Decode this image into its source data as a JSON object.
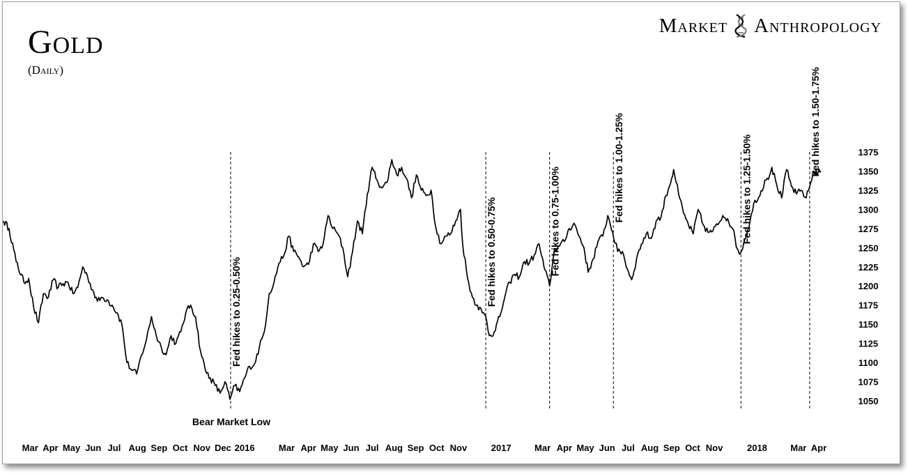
{
  "header": {
    "title": "Gold",
    "subtitle": "(Daily)"
  },
  "brand": {
    "left": "Market",
    "right": "Anthropology",
    "logo_icon": "dna-helix-icon"
  },
  "chart_data": {
    "type": "line",
    "title": "Gold",
    "subtitle": "(Daily)",
    "xlabel": "",
    "ylabel": "",
    "ylim": [
      1040,
      1385
    ],
    "y_ticks": [
      1050,
      1075,
      1100,
      1125,
      1150,
      1175,
      1200,
      1225,
      1250,
      1275,
      1300,
      1325,
      1350,
      1375
    ],
    "grid": false,
    "legend": "none",
    "x_range": [
      "2015-01-26",
      "2018-04-06"
    ],
    "x_ticks": [
      {
        "date": "2015-03-05",
        "label": "Mar"
      },
      {
        "date": "2015-04-03",
        "label": "Apr"
      },
      {
        "date": "2015-05-03",
        "label": "May"
      },
      {
        "date": "2015-06-03",
        "label": "Jun"
      },
      {
        "date": "2015-07-03",
        "label": "Jul"
      },
      {
        "date": "2015-08-05",
        "label": "Aug"
      },
      {
        "date": "2015-09-05",
        "label": "Sep"
      },
      {
        "date": "2015-10-05",
        "label": "Oct"
      },
      {
        "date": "2015-11-05",
        "label": "Nov"
      },
      {
        "date": "2015-12-05",
        "label": "Dec"
      },
      {
        "date": "2016-01-05",
        "label": "2016"
      },
      {
        "date": "2016-03-05",
        "label": "Mar"
      },
      {
        "date": "2016-04-05",
        "label": "Apr"
      },
      {
        "date": "2016-05-05",
        "label": "May"
      },
      {
        "date": "2016-06-05",
        "label": "Jun"
      },
      {
        "date": "2016-07-05",
        "label": "Jul"
      },
      {
        "date": "2016-08-05",
        "label": "Aug"
      },
      {
        "date": "2016-09-05",
        "label": "Sep"
      },
      {
        "date": "2016-10-05",
        "label": "Oct"
      },
      {
        "date": "2016-11-05",
        "label": "Nov"
      },
      {
        "date": "2017-01-05",
        "label": "2017"
      },
      {
        "date": "2017-03-05",
        "label": "Mar"
      },
      {
        "date": "2017-04-05",
        "label": "Apr"
      },
      {
        "date": "2017-05-05",
        "label": "May"
      },
      {
        "date": "2017-06-05",
        "label": "Jun"
      },
      {
        "date": "2017-07-05",
        "label": "Jul"
      },
      {
        "date": "2017-08-05",
        "label": "Aug"
      },
      {
        "date": "2017-09-05",
        "label": "Sep"
      },
      {
        "date": "2017-10-05",
        "label": "Oct"
      },
      {
        "date": "2017-11-05",
        "label": "Nov"
      },
      {
        "date": "2018-01-05",
        "label": "2018"
      },
      {
        "date": "2018-03-05",
        "label": "Mar"
      },
      {
        "date": "2018-04-03",
        "label": "Apr"
      }
    ],
    "series": [
      {
        "values": [
          [
            "2015-01-26",
            1285
          ],
          [
            "2015-02-03",
            1275
          ],
          [
            "2015-02-13",
            1232
          ],
          [
            "2015-02-24",
            1205
          ],
          [
            "2015-03-03",
            1210
          ],
          [
            "2015-03-10",
            1172
          ],
          [
            "2015-03-17",
            1152
          ],
          [
            "2015-03-24",
            1190
          ],
          [
            "2015-03-31",
            1185
          ],
          [
            "2015-04-07",
            1208
          ],
          [
            "2015-04-14",
            1198
          ],
          [
            "2015-04-21",
            1203
          ],
          [
            "2015-04-28",
            1205
          ],
          [
            "2015-05-05",
            1190
          ],
          [
            "2015-05-12",
            1198
          ],
          [
            "2015-05-19",
            1225
          ],
          [
            "2015-05-26",
            1212
          ],
          [
            "2015-06-02",
            1195
          ],
          [
            "2015-06-09",
            1180
          ],
          [
            "2015-06-16",
            1185
          ],
          [
            "2015-06-23",
            1182
          ],
          [
            "2015-06-30",
            1175
          ],
          [
            "2015-07-07",
            1165
          ],
          [
            "2015-07-14",
            1150
          ],
          [
            "2015-07-21",
            1100
          ],
          [
            "2015-07-28",
            1090
          ],
          [
            "2015-08-04",
            1085
          ],
          [
            "2015-08-11",
            1110
          ],
          [
            "2015-08-18",
            1130
          ],
          [
            "2015-08-25",
            1160
          ],
          [
            "2015-09-01",
            1135
          ],
          [
            "2015-09-08",
            1120
          ],
          [
            "2015-09-15",
            1110
          ],
          [
            "2015-09-22",
            1135
          ],
          [
            "2015-09-29",
            1125
          ],
          [
            "2015-10-06",
            1140
          ],
          [
            "2015-10-13",
            1165
          ],
          [
            "2015-10-20",
            1175
          ],
          [
            "2015-10-27",
            1160
          ],
          [
            "2015-11-03",
            1115
          ],
          [
            "2015-11-10",
            1090
          ],
          [
            "2015-11-17",
            1080
          ],
          [
            "2015-11-24",
            1070
          ],
          [
            "2015-12-01",
            1060
          ],
          [
            "2015-12-08",
            1075
          ],
          [
            "2015-12-15",
            1052
          ],
          [
            "2015-12-22",
            1070
          ],
          [
            "2015-12-29",
            1062
          ],
          [
            "2016-01-05",
            1080
          ],
          [
            "2016-01-12",
            1095
          ],
          [
            "2016-01-19",
            1098
          ],
          [
            "2016-01-26",
            1120
          ],
          [
            "2016-02-02",
            1140
          ],
          [
            "2016-02-09",
            1190
          ],
          [
            "2016-02-16",
            1205
          ],
          [
            "2016-02-23",
            1230
          ],
          [
            "2016-03-01",
            1240
          ],
          [
            "2016-03-08",
            1265
          ],
          [
            "2016-03-15",
            1245
          ],
          [
            "2016-03-22",
            1238
          ],
          [
            "2016-03-29",
            1225
          ],
          [
            "2016-04-05",
            1228
          ],
          [
            "2016-04-12",
            1255
          ],
          [
            "2016-04-19",
            1245
          ],
          [
            "2016-04-26",
            1255
          ],
          [
            "2016-05-03",
            1292
          ],
          [
            "2016-05-10",
            1275
          ],
          [
            "2016-05-17",
            1268
          ],
          [
            "2016-05-24",
            1250
          ],
          [
            "2016-05-31",
            1212
          ],
          [
            "2016-06-07",
            1245
          ],
          [
            "2016-06-14",
            1285
          ],
          [
            "2016-06-21",
            1268
          ],
          [
            "2016-06-28",
            1320
          ],
          [
            "2016-07-05",
            1355
          ],
          [
            "2016-07-12",
            1338
          ],
          [
            "2016-07-19",
            1328
          ],
          [
            "2016-07-26",
            1335
          ],
          [
            "2016-08-02",
            1365
          ],
          [
            "2016-08-09",
            1345
          ],
          [
            "2016-08-16",
            1355
          ],
          [
            "2016-08-23",
            1340
          ],
          [
            "2016-08-30",
            1315
          ],
          [
            "2016-09-06",
            1345
          ],
          [
            "2016-09-13",
            1325
          ],
          [
            "2016-09-20",
            1318
          ],
          [
            "2016-09-27",
            1325
          ],
          [
            "2016-10-04",
            1275
          ],
          [
            "2016-10-11",
            1255
          ],
          [
            "2016-10-18",
            1265
          ],
          [
            "2016-10-25",
            1268
          ],
          [
            "2016-11-01",
            1285
          ],
          [
            "2016-11-08",
            1300
          ],
          [
            "2016-11-11",
            1255
          ],
          [
            "2016-11-18",
            1210
          ],
          [
            "2016-11-25",
            1185
          ],
          [
            "2016-12-02",
            1175
          ],
          [
            "2016-12-09",
            1165
          ],
          [
            "2016-12-14",
            1160
          ],
          [
            "2016-12-19",
            1135
          ],
          [
            "2016-12-26",
            1140
          ],
          [
            "2017-01-03",
            1160
          ],
          [
            "2017-01-10",
            1185
          ],
          [
            "2017-01-17",
            1205
          ],
          [
            "2017-01-24",
            1215
          ],
          [
            "2017-01-31",
            1212
          ],
          [
            "2017-02-07",
            1232
          ],
          [
            "2017-02-14",
            1230
          ],
          [
            "2017-02-21",
            1240
          ],
          [
            "2017-02-28",
            1255
          ],
          [
            "2017-03-07",
            1225
          ],
          [
            "2017-03-15",
            1200
          ],
          [
            "2017-03-22",
            1248
          ],
          [
            "2017-03-29",
            1252
          ],
          [
            "2017-04-05",
            1258
          ],
          [
            "2017-04-12",
            1275
          ],
          [
            "2017-04-19",
            1282
          ],
          [
            "2017-04-26",
            1265
          ],
          [
            "2017-05-03",
            1250
          ],
          [
            "2017-05-09",
            1218
          ],
          [
            "2017-05-16",
            1235
          ],
          [
            "2017-05-23",
            1258
          ],
          [
            "2017-05-30",
            1265
          ],
          [
            "2017-06-06",
            1292
          ],
          [
            "2017-06-13",
            1270
          ],
          [
            "2017-06-20",
            1245
          ],
          [
            "2017-06-27",
            1245
          ],
          [
            "2017-07-04",
            1222
          ],
          [
            "2017-07-10",
            1208
          ],
          [
            "2017-07-17",
            1235
          ],
          [
            "2017-07-24",
            1255
          ],
          [
            "2017-07-31",
            1268
          ],
          [
            "2017-08-07",
            1262
          ],
          [
            "2017-08-14",
            1285
          ],
          [
            "2017-08-21",
            1290
          ],
          [
            "2017-08-28",
            1318
          ],
          [
            "2017-09-05",
            1340
          ],
          [
            "2017-09-08",
            1352
          ],
          [
            "2017-09-15",
            1320
          ],
          [
            "2017-09-22",
            1295
          ],
          [
            "2017-09-29",
            1280
          ],
          [
            "2017-10-06",
            1268
          ],
          [
            "2017-10-13",
            1300
          ],
          [
            "2017-10-20",
            1280
          ],
          [
            "2017-10-27",
            1270
          ],
          [
            "2017-11-03",
            1272
          ],
          [
            "2017-11-10",
            1280
          ],
          [
            "2017-11-17",
            1292
          ],
          [
            "2017-11-24",
            1288
          ],
          [
            "2017-12-01",
            1275
          ],
          [
            "2017-12-08",
            1248
          ],
          [
            "2017-12-12",
            1242
          ],
          [
            "2017-12-19",
            1262
          ],
          [
            "2017-12-26",
            1285
          ],
          [
            "2018-01-02",
            1312
          ],
          [
            "2018-01-09",
            1318
          ],
          [
            "2018-01-16",
            1338
          ],
          [
            "2018-01-23",
            1345
          ],
          [
            "2018-01-26",
            1355
          ],
          [
            "2018-02-02",
            1332
          ],
          [
            "2018-02-09",
            1315
          ],
          [
            "2018-02-16",
            1352
          ],
          [
            "2018-02-23",
            1330
          ],
          [
            "2018-03-02",
            1320
          ],
          [
            "2018-03-09",
            1325
          ],
          [
            "2018-03-16",
            1315
          ],
          [
            "2018-03-21",
            1330
          ],
          [
            "2018-03-27",
            1350
          ],
          [
            "2018-04-02",
            1348
          ],
          [
            "2018-04-06",
            1350
          ]
        ]
      }
    ],
    "annotations": [
      {
        "text": "Bear Market Low",
        "date": "2015-12-17",
        "placement": "below-low"
      },
      {
        "text": "Fed hikes to 0.25-0.50%",
        "date": "2015-12-16",
        "line_from": 1375,
        "line_to": 1040
      },
      {
        "text": "Fed hikes to 0.50-0.75%",
        "date": "2016-12-14",
        "line_from": 1375,
        "line_to": 1040
      },
      {
        "text": "Fed hikes to 0.75-1.00%",
        "date": "2017-03-15",
        "line_from": 1375,
        "line_to": 1040
      },
      {
        "text": "Fed hikes to 1.00-1.25%",
        "date": "2017-06-14",
        "line_from": 1375,
        "line_to": 1040
      },
      {
        "text": "Fed hikes to 1.25-1.50%",
        "date": "2017-12-13",
        "line_from": 1375,
        "line_to": 1040
      },
      {
        "text": "Fed hikes to 1.50-1.75%",
        "date": "2018-03-21",
        "line_from": 1375,
        "line_to": 1040
      }
    ]
  }
}
